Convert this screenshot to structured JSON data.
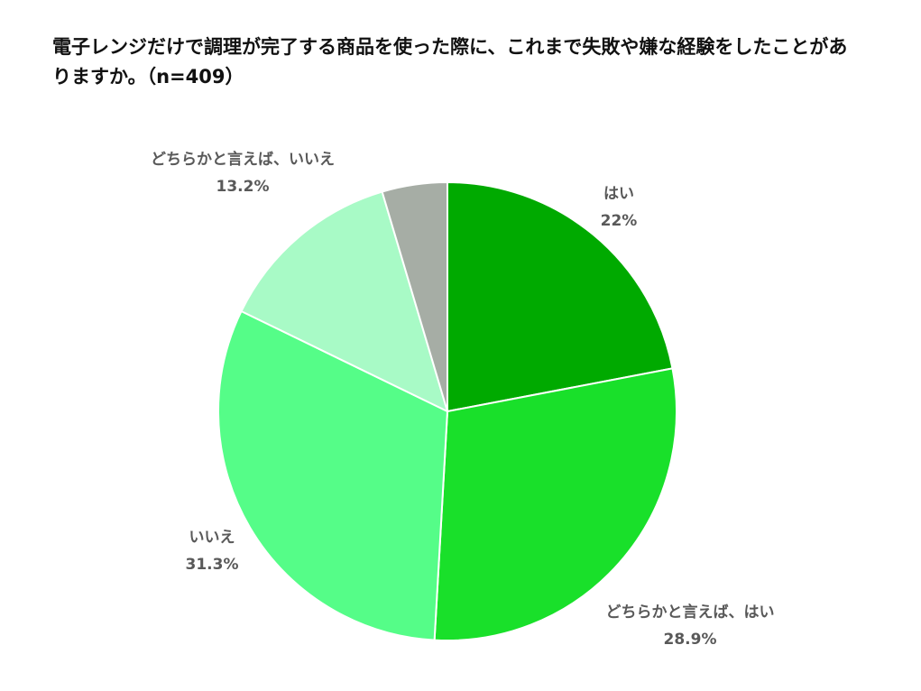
{
  "chart_data": {
    "type": "pie",
    "title": "電子レンジだけで調理が完了する商品を使った際に、これまで失敗や嫌な経験をしたことがありますか。（n=409）",
    "start_angle": "12 o'clock",
    "direction": "clockwise",
    "slices": [
      {
        "label": "はい",
        "value": 22,
        "value_label": "22%",
        "color": "#00aa00"
      },
      {
        "label": "どちらかと言えば、はい",
        "value": 28.9,
        "value_label": "28.9%",
        "color": "#19e02a"
      },
      {
        "label": "いいえ",
        "value": 31.3,
        "value_label": "31.3%",
        "color": "#55fd88"
      },
      {
        "label": "どちらかと言えば、いいえ",
        "value": 13.2,
        "value_label": "13.2%",
        "color": "#a8fac6"
      },
      {
        "label": "",
        "value": 4.6,
        "value_label": "",
        "color": "#a6ada5"
      }
    ]
  }
}
